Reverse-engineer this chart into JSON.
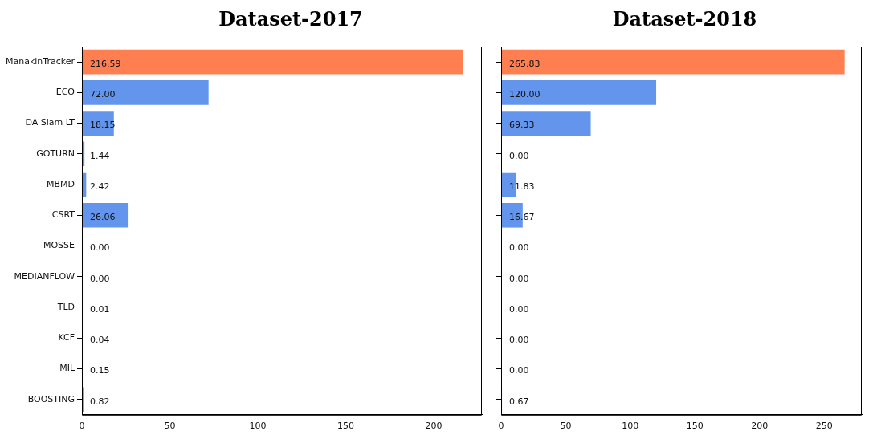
{
  "chart_data": [
    {
      "type": "bar",
      "orientation": "horizontal",
      "title": "Dataset-2017",
      "categories": [
        "ManakinTracker",
        "ECO",
        "DA Siam LT",
        "GOTURN",
        "MBMD",
        "CSRT",
        "MOSSE",
        "MEDIANFLOW",
        "TLD",
        "KCF",
        "MIL",
        "BOOSTING"
      ],
      "values": [
        216.59,
        72.0,
        18.15,
        1.44,
        2.42,
        26.06,
        0.0,
        0.0,
        0.01,
        0.04,
        0.15,
        0.82
      ],
      "value_labels": [
        "216.59",
        "72.00",
        "18.15",
        "1.44",
        "2.42",
        "26.06",
        "0.00",
        "0.00",
        "0.01",
        "0.04",
        "0.15",
        "0.82"
      ],
      "colors": [
        "#ff7f50",
        "#6495ed",
        "#6495ed",
        "#6495ed",
        "#6495ed",
        "#6495ed",
        "#6495ed",
        "#6495ed",
        "#6495ed",
        "#6495ed",
        "#6495ed",
        "#6495ed"
      ],
      "xlim": [
        0,
        227.4
      ],
      "xticks": [
        0,
        50,
        100,
        150,
        200
      ],
      "grid": false,
      "legend": false
    },
    {
      "type": "bar",
      "orientation": "horizontal",
      "title": "Dataset-2018",
      "categories": [
        null,
        null,
        null,
        null,
        null,
        null,
        null,
        null,
        null,
        null,
        null,
        null
      ],
      "values": [
        265.83,
        120.0,
        69.33,
        0.0,
        11.83,
        16.67,
        0.0,
        0.0,
        0.0,
        0.0,
        0.0,
        0.67
      ],
      "value_labels": [
        "265.83",
        "120.00",
        "69.33",
        "0.00",
        "11.83",
        "16.67",
        "0.00",
        "0.00",
        "0.00",
        "0.00",
        "0.00",
        "0.67"
      ],
      "colors": [
        "#ff7f50",
        "#6495ed",
        "#6495ed",
        "#6495ed",
        "#6495ed",
        "#6495ed",
        "#6495ed",
        "#6495ed",
        "#6495ed",
        "#6495ed",
        "#6495ed",
        "#6495ed"
      ],
      "xlim": [
        0,
        279.1
      ],
      "xticks": [
        0,
        50,
        100,
        150,
        200,
        250
      ],
      "grid": false,
      "legend": false,
      "tick_labels": "x"
    }
  ]
}
